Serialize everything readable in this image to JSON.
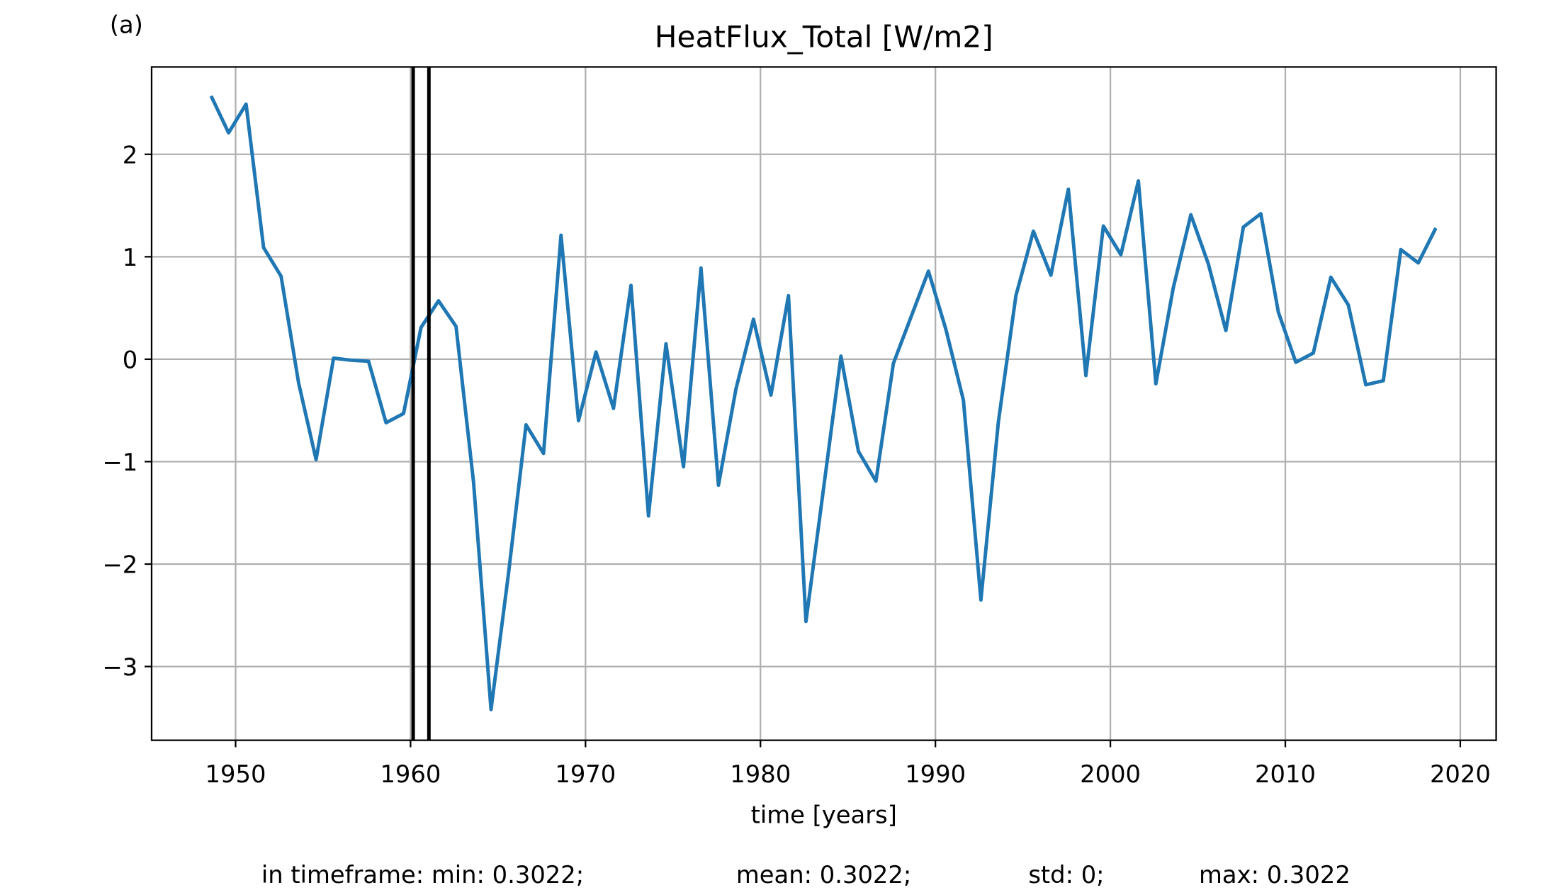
{
  "chart_data": {
    "type": "line",
    "panel_label": "(a)",
    "title": "HeatFlux_Total [W/m2]",
    "xlabel": "time [years]",
    "footer": [
      "in timeframe: min: 0.3022;",
      "mean: 0.3022;",
      "std: 0;",
      "max: 0.3022"
    ],
    "x": [
      1948.6,
      1949.6,
      1950.6,
      1951.6,
      1952.6,
      1953.6,
      1954.6,
      1955.6,
      1956.6,
      1957.6,
      1958.6,
      1959.6,
      1960.6,
      1961.6,
      1962.6,
      1963.6,
      1964.6,
      1965.6,
      1966.6,
      1967.6,
      1968.6,
      1969.6,
      1970.6,
      1971.6,
      1972.6,
      1973.6,
      1974.6,
      1975.6,
      1976.6,
      1977.6,
      1978.6,
      1979.6,
      1980.6,
      1981.6,
      1982.6,
      1983.6,
      1984.6,
      1985.6,
      1986.6,
      1987.6,
      1988.6,
      1989.6,
      1990.6,
      1991.6,
      1992.6,
      1993.6,
      1994.6,
      1995.6,
      1996.6,
      1997.6,
      1998.6,
      1999.6,
      2000.6,
      2001.6,
      2002.6,
      2003.6,
      2004.6,
      2005.6,
      2006.6,
      2007.6,
      2008.6,
      2009.6,
      2010.6,
      2011.6,
      2012.6,
      2013.6,
      2014.6,
      2015.6,
      2016.6,
      2017.6,
      2018.6
    ],
    "values": [
      2.57,
      2.21,
      2.49,
      1.09,
      0.81,
      -0.23,
      -0.98,
      0.01,
      -0.01,
      -0.02,
      -0.62,
      -0.53,
      0.31,
      0.57,
      0.32,
      -1.2,
      -3.42,
      -2.09,
      -0.64,
      -0.92,
      1.21,
      -0.6,
      0.07,
      -0.48,
      0.72,
      -1.53,
      0.15,
      -1.05,
      0.89,
      -1.23,
      -0.29,
      0.39,
      -0.35,
      0.62,
      -2.56,
      -1.27,
      0.03,
      -0.9,
      -1.19,
      -0.04,
      0.41,
      0.86,
      0.29,
      -0.4,
      -2.35,
      -0.61,
      0.62,
      1.25,
      0.82,
      1.66,
      -0.16,
      1.3,
      1.02,
      1.74,
      -0.24,
      0.7,
      1.41,
      0.93,
      0.28,
      1.29,
      1.42,
      0.46,
      -0.03,
      0.06,
      0.8,
      0.53,
      -0.25,
      -0.21,
      1.07,
      0.94,
      1.28
    ],
    "color": "#1f77b4",
    "vlines": [
      1960.15,
      1961.05
    ],
    "vline_color": "#000000",
    "xlim": [
      1945.2,
      2022.05
    ],
    "ylim": [
      -3.72,
      2.853
    ],
    "xticks": [
      1950,
      1960,
      1970,
      1980,
      1990,
      2000,
      2010,
      2020
    ],
    "yticks": [
      {
        "value": -3,
        "label": "−3"
      },
      {
        "value": -2,
        "label": "−2"
      },
      {
        "value": -1,
        "label": "−1"
      },
      0,
      1,
      2
    ],
    "grid": true
  }
}
